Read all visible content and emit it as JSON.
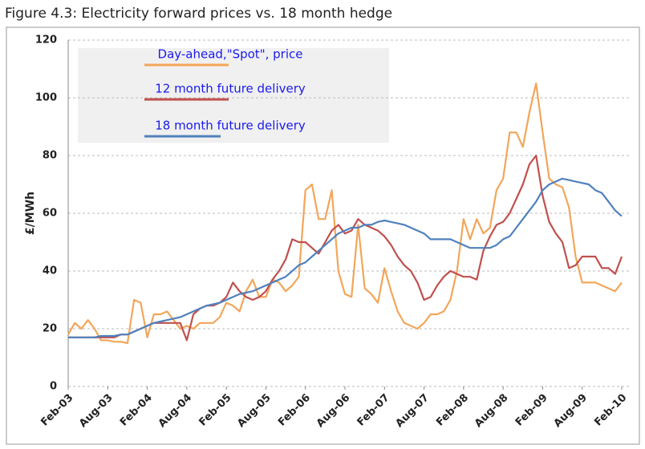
{
  "chart_data": {
    "type": "line",
    "title": "Figure 4.3: Electricity forward prices vs. 18 month hedge",
    "y_label": "£/MWh",
    "categories": [
      "Feb-03",
      null,
      null,
      null,
      null,
      null,
      "Aug-03",
      null,
      null,
      null,
      null,
      null,
      "Feb-04",
      null,
      null,
      null,
      null,
      null,
      "Aug-04",
      null,
      null,
      null,
      null,
      null,
      "Feb-05",
      null,
      null,
      null,
      null,
      null,
      "Aug-05",
      null,
      null,
      null,
      null,
      null,
      "Feb-06",
      null,
      null,
      null,
      null,
      null,
      "Aug-06",
      null,
      null,
      null,
      null,
      null,
      "Feb-07",
      null,
      null,
      null,
      null,
      null,
      "Aug-07",
      null,
      null,
      null,
      null,
      null,
      "Feb-08",
      null,
      null,
      null,
      null,
      null,
      "Aug-08",
      null,
      null,
      null,
      null,
      null,
      "Feb-09",
      null,
      null,
      null,
      null,
      null,
      "Aug-09",
      null,
      null,
      null,
      null,
      null,
      "Feb-10"
    ],
    "series": [
      {
        "name": "Day-ahead,\"Spot\", price",
        "color": "#f2a65a",
        "values": [
          18,
          22,
          20,
          23,
          20,
          16,
          16,
          15.5,
          15.5,
          15,
          30,
          29,
          17,
          25,
          25,
          26,
          23,
          20,
          21,
          20,
          22,
          22,
          22,
          24,
          29,
          28,
          26,
          33,
          37,
          31,
          31,
          37,
          36,
          33,
          35,
          38,
          68,
          70,
          58,
          58,
          68,
          40,
          32,
          31,
          56,
          34,
          32,
          29,
          41,
          33,
          26,
          22,
          21,
          20,
          22,
          25,
          25,
          26,
          30,
          40,
          58,
          51,
          58,
          53,
          55,
          68,
          72,
          88,
          88,
          83,
          95,
          105,
          88,
          72,
          70,
          69,
          62,
          45,
          36,
          36,
          36,
          35,
          34,
          33,
          36
        ]
      },
      {
        "name": "12 month future delivery",
        "color": "#c0504d",
        "values": [
          17,
          17,
          17,
          17,
          17,
          17,
          17,
          17,
          18,
          18,
          19,
          20,
          21,
          22,
          22,
          22,
          22,
          22,
          16,
          25,
          27,
          28,
          28,
          29,
          31,
          36,
          33,
          31,
          30,
          31,
          33,
          37,
          40,
          44,
          51,
          50,
          50,
          48,
          46,
          50,
          54,
          56,
          53,
          54,
          58,
          56,
          55,
          54,
          52,
          49,
          45,
          42,
          40,
          36,
          30,
          31,
          35,
          38,
          40,
          39,
          38,
          38,
          37,
          47,
          52,
          56,
          57,
          60,
          65,
          70,
          77,
          80,
          66,
          57,
          53,
          50,
          41,
          42,
          45,
          45,
          45,
          41,
          41,
          39,
          45
        ]
      },
      {
        "name": "18 month future delivery",
        "color": "#4f81bd",
        "values": [
          17,
          17,
          17,
          17,
          17,
          17.5,
          17.5,
          17.5,
          18,
          18,
          19,
          20,
          21,
          22,
          22.5,
          23,
          23.5,
          24,
          25,
          26,
          27,
          28,
          28.5,
          29,
          30,
          31,
          32,
          32.5,
          33,
          34,
          35,
          36,
          37,
          38,
          40,
          42,
          43,
          45,
          47,
          49,
          51,
          53,
          54,
          55,
          55,
          56,
          56,
          57,
          57.5,
          57,
          56.5,
          56,
          55,
          54,
          53,
          51,
          51,
          51,
          51,
          50,
          49,
          48,
          48,
          48,
          48,
          49,
          51,
          52,
          55,
          58,
          61,
          64,
          68,
          70,
          71,
          72,
          71.5,
          71,
          70.5,
          70,
          68,
          67,
          64,
          61,
          59
        ]
      }
    ],
    "ylim": [
      0,
      120
    ],
    "yticks": [
      0,
      20,
      40,
      60,
      80,
      100,
      120
    ],
    "grid": true
  }
}
